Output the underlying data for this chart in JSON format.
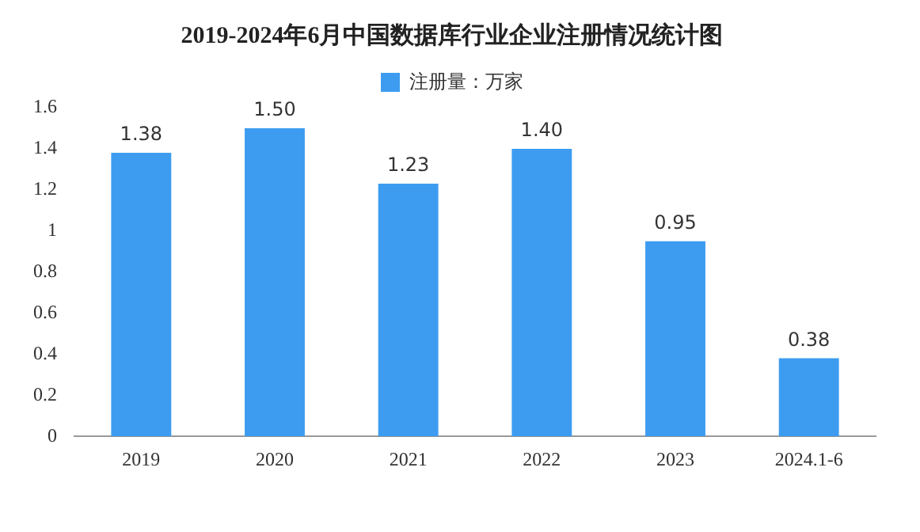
{
  "chart_data": {
    "type": "bar",
    "title": "2019-2024年6月中国数据库行业企业注册情况统计图",
    "categories": [
      "2019",
      "2020",
      "2021",
      "2022",
      "2023",
      "2024.1-6"
    ],
    "series": [
      {
        "name": "注册量：万家",
        "color": "#3d9cf0",
        "values": [
          1.38,
          1.5,
          1.23,
          1.4,
          0.95,
          0.38
        ]
      }
    ],
    "value_labels": [
      "1.38",
      "1.50",
      "1.23",
      "1.40",
      "0.95",
      "0.38"
    ],
    "ylim": [
      0,
      1.6
    ],
    "yticks": [
      0,
      0.2,
      0.4,
      0.6,
      0.8,
      1,
      1.2,
      1.4,
      1.6
    ],
    "legend": "top"
  }
}
